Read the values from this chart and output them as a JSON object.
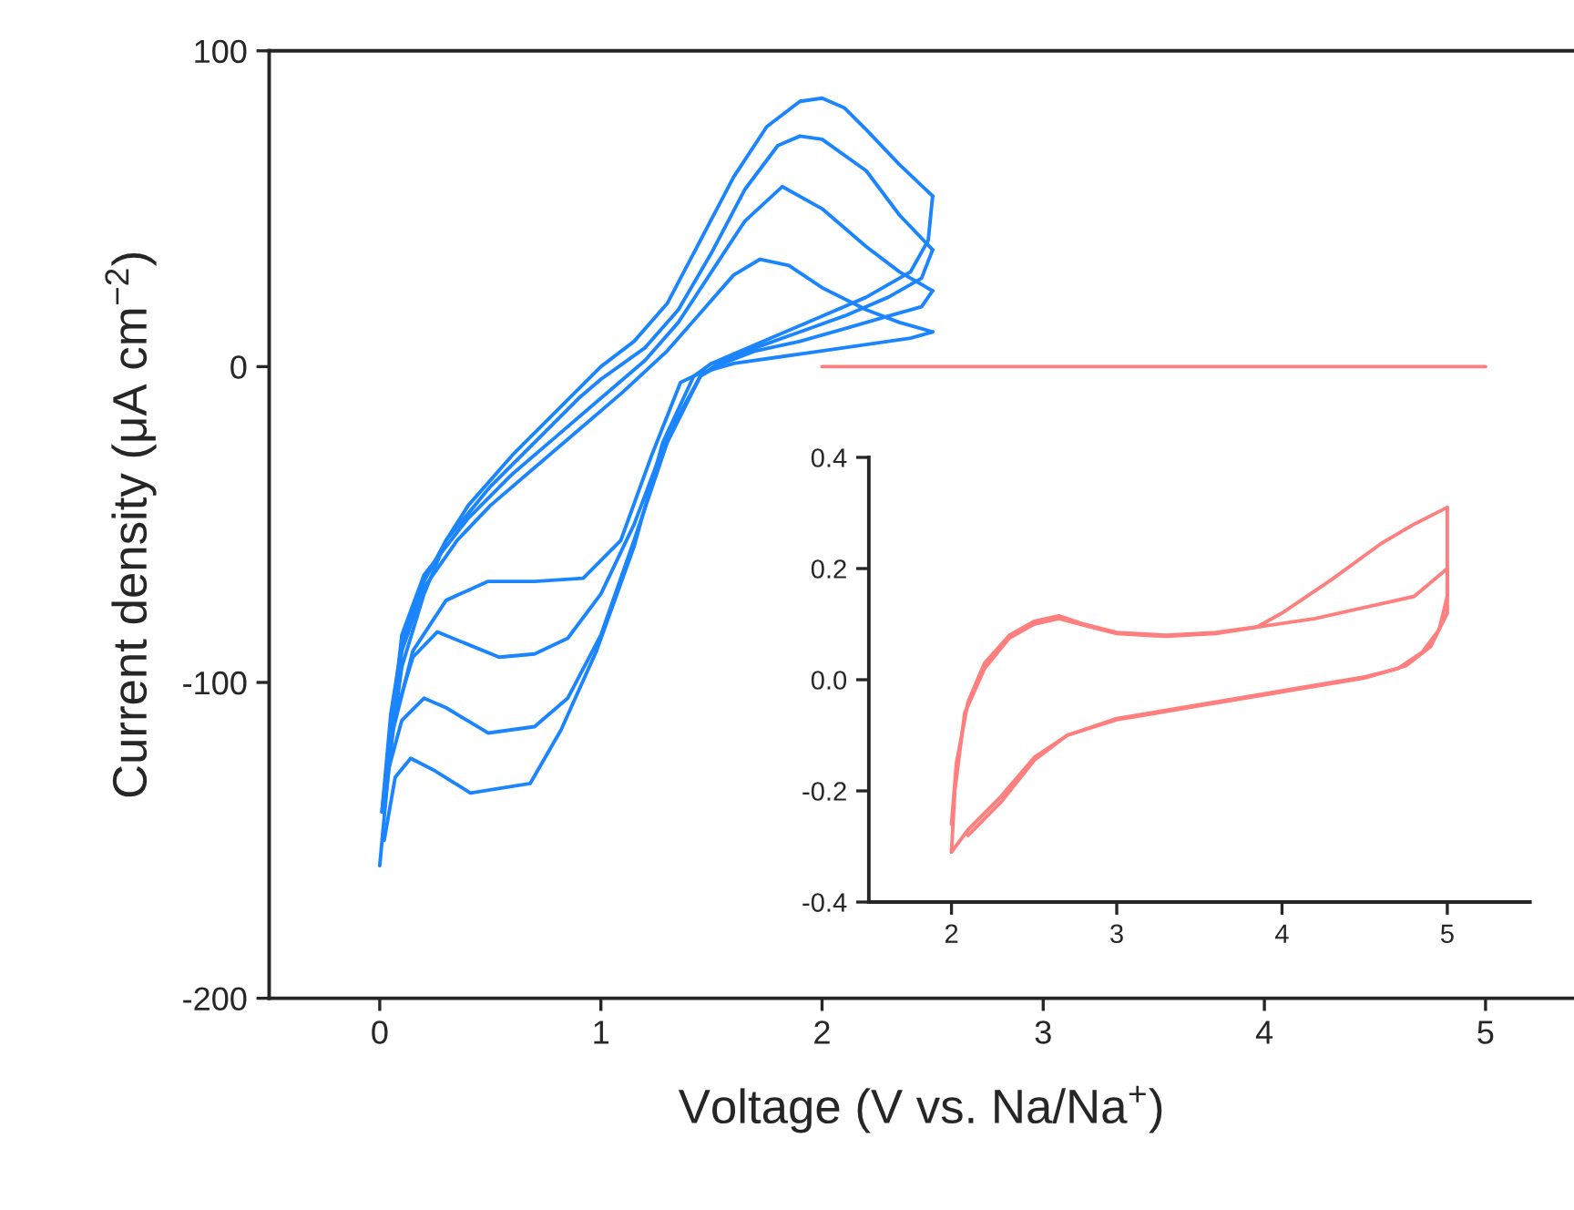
{
  "chart_data": [
    {
      "type": "line",
      "xlabel": "Voltage (V vs. Na/Na$^{+}$)",
      "ylabel": "Current density (μA cm$^{−2}$)",
      "xlim": [
        -0.5,
        5.4
      ],
      "ylim": [
        -200,
        100
      ],
      "xticks": [
        0,
        1,
        2,
        3,
        4,
        5
      ],
      "yticks": [
        -200,
        -100,
        0,
        100
      ],
      "grid": false,
      "line_style": "solid",
      "series": [
        {
          "color": "#1a85ff",
          "x": [
            0,
            0.05,
            0.1,
            0.2,
            0.3,
            0.4,
            0.6,
            0.8,
            1.0,
            1.15,
            1.3,
            1.45,
            1.6,
            1.75,
            1.9,
            2.0,
            2.1,
            2.2,
            2.35,
            2.5
          ],
          "values": [
            -158,
            -120,
            -95,
            -72,
            -55,
            -44,
            -28,
            -14,
            0,
            8,
            20,
            40,
            60,
            76,
            84,
            85,
            82,
            75,
            64,
            54
          ]
        },
        {
          "color": "#1a85ff",
          "x": [
            0.02,
            0.07,
            0.14,
            0.25,
            0.41,
            0.68,
            0.82,
            0.98,
            1.15,
            1.28,
            1.42,
            1.5,
            1.6,
            1.8,
            2.0,
            2.2,
            2.4,
            2.48,
            2.5
          ],
          "values": [
            -150,
            -130,
            -124,
            -128,
            -135,
            -132,
            -115,
            -90,
            -57,
            -24,
            -3,
            1,
            4,
            10,
            16,
            22,
            30,
            40,
            54
          ]
        },
        {
          "color": "#1a85ff",
          "x": [
            0.01,
            0.05,
            0.1,
            0.2,
            0.3,
            0.5,
            0.7,
            0.9,
            1.0,
            1.2,
            1.35,
            1.5,
            1.65,
            1.8,
            1.9,
            2.0,
            2.2,
            2.35,
            2.5
          ],
          "values": [
            -141,
            -110,
            -88,
            -68,
            -55,
            -38,
            -24,
            -10,
            -4,
            6,
            18,
            36,
            56,
            70,
            73,
            72,
            62,
            48,
            37
          ]
        },
        {
          "color": "#1a85ff",
          "x": [
            0.03,
            0.1,
            0.2,
            0.3,
            0.49,
            0.7,
            0.85,
            1.0,
            1.15,
            1.3,
            1.45,
            1.55,
            1.7,
            1.9,
            2.1,
            2.3,
            2.45,
            2.5
          ],
          "values": [
            -130,
            -112,
            -105,
            -108,
            -116,
            -114,
            -105,
            -85,
            -55,
            -24,
            -3,
            2,
            6,
            11,
            16,
            22,
            28,
            37
          ]
        },
        {
          "color": "#1a85ff",
          "x": [
            0.01,
            0.1,
            0.2,
            0.4,
            0.6,
            0.8,
            1.0,
            1.2,
            1.35,
            1.5,
            1.65,
            1.82,
            2.0,
            2.2,
            2.35,
            2.5
          ],
          "values": [
            -141,
            -85,
            -66,
            -48,
            -34,
            -22,
            -10,
            2,
            14,
            30,
            46,
            57,
            50,
            38,
            30,
            24
          ]
        },
        {
          "color": "#1a85ff",
          "x": [
            0.05,
            0.15,
            0.26,
            0.4,
            0.54,
            0.7,
            0.85,
            1.0,
            1.15,
            1.3,
            1.45,
            1.55,
            1.7,
            1.9,
            2.1,
            2.3,
            2.45,
            2.5
          ],
          "values": [
            -115,
            -92,
            -84,
            -88,
            -92,
            -91,
            -86,
            -72,
            -50,
            -22,
            -3,
            1,
            5,
            8,
            12,
            16,
            19,
            24
          ]
        },
        {
          "color": "#1a85ff",
          "x": [
            0.02,
            0.1,
            0.2,
            0.35,
            0.5,
            0.7,
            0.9,
            1.1,
            1.3,
            1.45,
            1.6,
            1.72,
            1.85,
            2.0,
            2.2,
            2.35,
            2.5
          ],
          "values": [
            -141,
            -90,
            -70,
            -55,
            -44,
            -32,
            -20,
            -8,
            5,
            17,
            29,
            34,
            32,
            25,
            18,
            14,
            11
          ]
        },
        {
          "color": "#1a85ff",
          "x": [
            0.05,
            0.15,
            0.3,
            0.49,
            0.7,
            0.92,
            1.09,
            1.23,
            1.36,
            1.45,
            1.6,
            1.8,
            2.0,
            2.2,
            2.4,
            2.5
          ],
          "values": [
            -118,
            -90,
            -74,
            -68,
            -68,
            -67,
            -55,
            -28,
            -5,
            -2,
            1,
            3,
            5,
            7,
            9,
            11
          ]
        },
        {
          "color": "#ff7f7f",
          "x": [
            2,
            5
          ],
          "values": [
            0,
            0
          ]
        }
      ]
    },
    {
      "type": "line",
      "xlim": [
        1.5,
        5.5
      ],
      "ylim": [
        -0.4,
        0.4
      ],
      "xticks": [
        2,
        3,
        4,
        5
      ],
      "yticks": [
        {
          "value": -0.4,
          "label": "-0.4"
        },
        {
          "value": -0.2,
          "label": "-0.2"
        },
        {
          "value": 0.0,
          "label": "0.0"
        },
        {
          "value": 0.2,
          "label": "0.2"
        },
        {
          "value": 0.4,
          "label": "0.4"
        }
      ],
      "grid": false,
      "line_style": "solid",
      "series": [
        {
          "color": "#ff7f7f",
          "x": [
            2.0,
            2.03,
            2.1,
            2.2,
            2.35,
            2.5,
            2.65,
            2.8,
            3.0,
            3.3,
            3.6,
            3.85,
            4.0,
            4.3,
            4.6,
            4.8,
            5.0
          ],
          "values": [
            -0.26,
            -0.15,
            -0.04,
            0.03,
            0.08,
            0.105,
            0.115,
            0.1,
            0.085,
            0.08,
            0.085,
            0.095,
            0.12,
            0.18,
            0.245,
            0.28,
            0.31
          ]
        },
        {
          "color": "#ff7f7f",
          "x": [
            2.0,
            2.1,
            2.3,
            2.5,
            2.7,
            3.0,
            3.5,
            4.0,
            4.5,
            4.7,
            4.85,
            4.95,
            5.0,
            5.0
          ],
          "values": [
            -0.31,
            -0.27,
            -0.21,
            -0.14,
            -0.1,
            -0.07,
            -0.045,
            -0.02,
            0.005,
            0.02,
            0.05,
            0.09,
            0.15,
            0.31
          ]
        },
        {
          "color": "#ff7f7f",
          "x": [
            2.0,
            2.02,
            2.08,
            2.2,
            2.35,
            2.5,
            2.65,
            2.8,
            3.0,
            3.3,
            3.6,
            3.9,
            4.2,
            4.5,
            4.8,
            5.0
          ],
          "values": [
            -0.31,
            -0.2,
            -0.06,
            0.02,
            0.075,
            0.1,
            0.11,
            0.098,
            0.083,
            0.078,
            0.083,
            0.097,
            0.11,
            0.13,
            0.15,
            0.2
          ]
        },
        {
          "color": "#ff7f7f",
          "x": [
            2.1,
            2.3,
            2.5,
            2.7,
            3.0,
            3.5,
            4.0,
            4.5,
            4.75,
            4.9,
            5.0,
            5.0
          ],
          "values": [
            -0.28,
            -0.22,
            -0.145,
            -0.1,
            -0.072,
            -0.047,
            -0.022,
            0.003,
            0.025,
            0.06,
            0.12,
            0.2
          ]
        }
      ]
    }
  ]
}
